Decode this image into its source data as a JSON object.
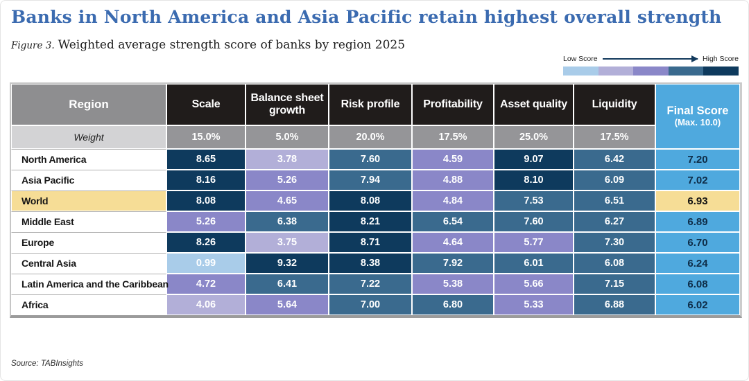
{
  "page": {
    "title": "Banks in North America and Asia Pacific retain highest overall strength",
    "figure_label": "Figure 3.",
    "figure_caption": "Weighted average strength score of banks by region 2025",
    "source": "Source: TABInsights"
  },
  "legend": {
    "low_label": "Low Score",
    "high_label": "High Score",
    "colors": [
      "#a9cce9",
      "#b2afd8",
      "#8a87c8",
      "#3a6a8e",
      "#0e3a5d"
    ]
  },
  "colors": {
    "title_blue": "#3b6bb0",
    "header_black": "#201c1b",
    "header_gray": "#8e8e90",
    "weight_label_bg": "#d3d3d5",
    "weight_value_bg": "#959598",
    "score_navy": "#0e3a5d",
    "score_steel": "#3a6a8e",
    "score_purple": "#8a87c8",
    "score_lavender": "#b2afd8",
    "score_lightblue": "#a9cce9",
    "final_score_blue": "#4fa9de",
    "highlight_yellow": "#f6dd96"
  },
  "table": {
    "region_header": "Region",
    "weight_label": "Weight",
    "columns": [
      "Scale",
      "Balance sheet growth",
      "Risk profile",
      "Profitability",
      "Asset quality",
      "Liquidity"
    ],
    "weights": [
      "15.0%",
      "5.0%",
      "20.0%",
      "17.5%",
      "25.0%",
      "17.5%"
    ],
    "final_header": "Final Score",
    "final_sub": "(Max. 10.0)",
    "rows": [
      {
        "region": "North America",
        "highlight": false,
        "values": [
          "8.65",
          "3.78",
          "7.60",
          "4.59",
          "9.07",
          "6.42"
        ],
        "levels": [
          "navy",
          "lavender",
          "steel",
          "purple",
          "navy",
          "steel"
        ],
        "final": "7.20"
      },
      {
        "region": "Asia Pacific",
        "highlight": false,
        "values": [
          "8.16",
          "5.26",
          "7.94",
          "4.88",
          "8.10",
          "6.09"
        ],
        "levels": [
          "navy",
          "purple",
          "steel",
          "purple",
          "navy",
          "steel"
        ],
        "final": "7.02"
      },
      {
        "region": "World",
        "highlight": true,
        "values": [
          "8.08",
          "4.65",
          "8.08",
          "4.84",
          "7.53",
          "6.51"
        ],
        "levels": [
          "navy",
          "purple",
          "navy",
          "purple",
          "steel",
          "steel"
        ],
        "final": "6.93"
      },
      {
        "region": "Middle East",
        "highlight": false,
        "values": [
          "5.26",
          "6.38",
          "8.21",
          "6.54",
          "7.60",
          "6.27"
        ],
        "levels": [
          "purple",
          "steel",
          "navy",
          "steel",
          "steel",
          "steel"
        ],
        "final": "6.89"
      },
      {
        "region": "Europe",
        "highlight": false,
        "values": [
          "8.26",
          "3.75",
          "8.71",
          "4.64",
          "5.77",
          "7.30"
        ],
        "levels": [
          "navy",
          "lavender",
          "navy",
          "purple",
          "purple",
          "steel"
        ],
        "final": "6.70"
      },
      {
        "region": "Central Asia",
        "highlight": false,
        "values": [
          "0.99",
          "9.32",
          "8.38",
          "7.92",
          "6.01",
          "6.08"
        ],
        "levels": [
          "lightblue",
          "navy",
          "navy",
          "steel",
          "steel",
          "steel"
        ],
        "final": "6.24"
      },
      {
        "region": "Latin America and the Caribbean",
        "highlight": false,
        "values": [
          "4.72",
          "6.41",
          "7.22",
          "5.38",
          "5.66",
          "7.15"
        ],
        "levels": [
          "purple",
          "steel",
          "steel",
          "purple",
          "purple",
          "steel"
        ],
        "final": "6.08"
      },
      {
        "region": "Africa",
        "highlight": false,
        "values": [
          "4.06",
          "5.64",
          "7.00",
          "6.80",
          "5.33",
          "6.88"
        ],
        "levels": [
          "lavender",
          "purple",
          "steel",
          "steel",
          "purple",
          "steel"
        ],
        "final": "6.02"
      }
    ]
  },
  "chart_data": {
    "type": "heatmap",
    "title": "Banks in North America and Asia Pacific retain highest overall strength",
    "subtitle": "Figure 3. Weighted average strength score of banks by region 2025",
    "value_range": [
      0,
      10
    ],
    "legend": {
      "low": "Low Score",
      "high": "High Score"
    },
    "columns": [
      "Scale",
      "Balance sheet growth",
      "Risk profile",
      "Profitability",
      "Asset quality",
      "Liquidity",
      "Final Score (Max. 10.0)"
    ],
    "column_weights_percent": [
      15.0,
      5.0,
      20.0,
      17.5,
      25.0,
      17.5,
      null
    ],
    "rows": [
      {
        "region": "North America",
        "values": [
          8.65,
          3.78,
          7.6,
          4.59,
          9.07,
          6.42
        ],
        "final_score": 7.2
      },
      {
        "region": "Asia Pacific",
        "values": [
          8.16,
          5.26,
          7.94,
          4.88,
          8.1,
          6.09
        ],
        "final_score": 7.02
      },
      {
        "region": "World",
        "values": [
          8.08,
          4.65,
          8.08,
          4.84,
          7.53,
          6.51
        ],
        "final_score": 6.93
      },
      {
        "region": "Middle East",
        "values": [
          5.26,
          6.38,
          8.21,
          6.54,
          7.6,
          6.27
        ],
        "final_score": 6.89
      },
      {
        "region": "Europe",
        "values": [
          8.26,
          3.75,
          8.71,
          4.64,
          5.77,
          7.3
        ],
        "final_score": 6.7
      },
      {
        "region": "Central Asia",
        "values": [
          0.99,
          9.32,
          8.38,
          7.92,
          6.01,
          6.08
        ],
        "final_score": 6.24
      },
      {
        "region": "Latin America and the Caribbean",
        "values": [
          4.72,
          6.41,
          7.22,
          5.38,
          5.66,
          7.15
        ],
        "final_score": 6.08
      },
      {
        "region": "Africa",
        "values": [
          4.06,
          5.64,
          7.0,
          6.8,
          5.33,
          6.88
        ],
        "final_score": 6.02
      }
    ],
    "source": "Source: TABInsights"
  }
}
